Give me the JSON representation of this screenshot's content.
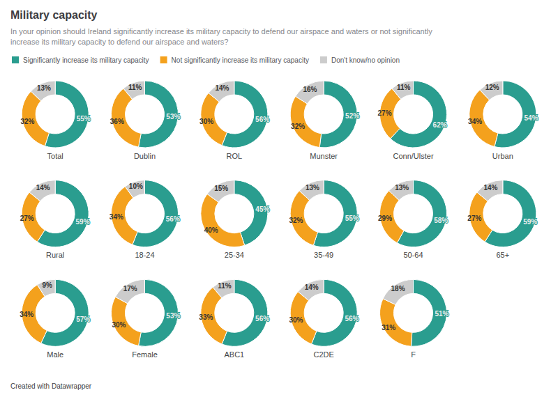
{
  "chart_data": {
    "type": "pie",
    "title": "Military capacity",
    "subtitle": "In your opinion should Ireland significantly increase its military capacity to defend our airspace and waters or not significantly\nincrease its military capacity to defend our airspace and waters?",
    "annotations": [
      "Created with Datawrapper"
    ],
    "legend": "top-left",
    "data_labels": true,
    "categories": [
      "Total",
      "Dublin",
      "ROL",
      "Munster",
      "Conn/Ulster",
      "Urban",
      "Rural",
      "18-24",
      "25-34",
      "35-49",
      "50-64",
      "65+",
      "Male",
      "Female",
      "ABC1",
      "C2DE",
      "F"
    ],
    "series": [
      {
        "name": "Significantly increase its military capacity",
        "color": "#2a9d8f",
        "values": [
          55,
          53,
          56,
          52,
          62,
          54,
          59,
          56,
          45,
          55,
          58,
          59,
          57,
          53,
          56,
          56,
          51
        ],
        "value_labels": [
          "55%",
          "53%",
          "56%",
          "52%",
          "62%",
          "54%",
          "59%",
          "56%",
          "45%",
          "55%",
          "58%",
          "59%",
          "57%",
          "53%",
          "56%",
          "56%",
          "51%"
        ]
      },
      {
        "name": "Not significantly increase its military capacity",
        "color": "#f4a11d",
        "values": [
          32,
          36,
          30,
          32,
          27,
          34,
          27,
          34,
          40,
          32,
          29,
          27,
          34,
          30,
          33,
          30,
          31
        ],
        "value_labels": [
          "32%",
          "36%",
          "30%",
          "32%",
          "27%",
          "34%",
          "27%",
          "34%",
          "40%",
          "32%",
          "29%",
          "27%",
          "34%",
          "30%",
          "33%",
          "30%",
          "31%"
        ]
      },
      {
        "name": "Don't know/no opinion",
        "color": "#cccccc",
        "values": [
          13,
          11,
          14,
          16,
          11,
          12,
          14,
          10,
          15,
          13,
          13,
          14,
          9,
          17,
          11,
          14,
          18
        ],
        "value_labels": [
          "13%",
          "11%",
          "14%",
          "16%",
          "11%",
          "12%",
          "14%",
          "10%",
          "15%",
          "13%",
          "13%",
          "14%",
          "9%",
          "17%",
          "11%",
          "14%",
          "18%"
        ]
      }
    ]
  }
}
